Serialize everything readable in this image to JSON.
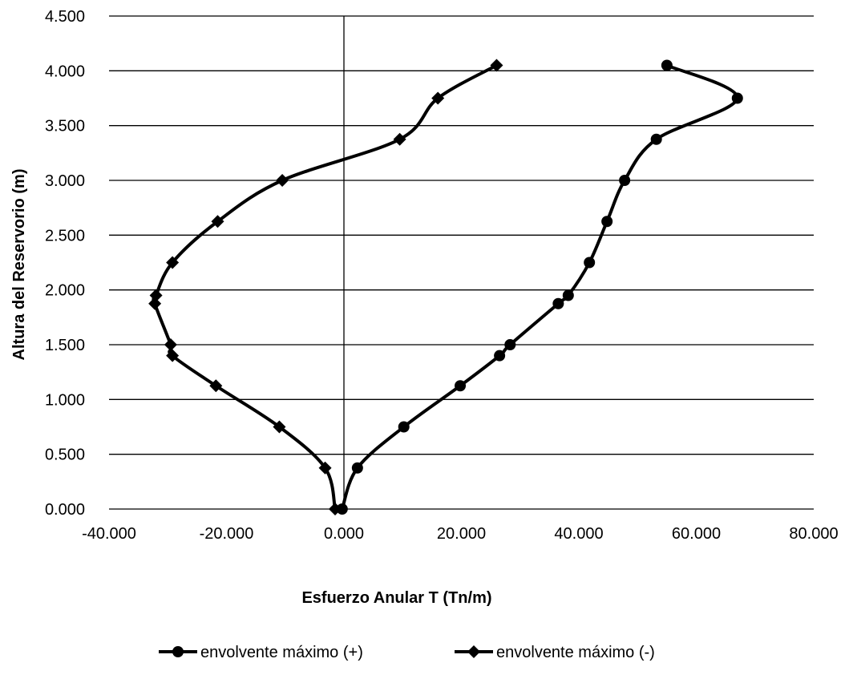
{
  "chart_data": {
    "type": "scatter",
    "title": "",
    "xlabel": "Esfuerzo Anular T (Tn/m)",
    "ylabel": "Altura del Reservorio (m)",
    "xlim": [
      -40,
      80
    ],
    "ylim": [
      0,
      4.5
    ],
    "x_ticks": [
      -40,
      -20,
      0,
      20,
      40,
      60,
      80
    ],
    "x_tick_labels": [
      "-40.000",
      "-20.000",
      "0.000",
      "20.000",
      "40.000",
      "60.000",
      "80.000"
    ],
    "y_ticks": [
      0,
      0.5,
      1,
      1.5,
      2,
      2.5,
      3,
      3.5,
      4,
      4.5
    ],
    "y_tick_labels": [
      "0.000",
      "0.500",
      "1.000",
      "1.500",
      "2.000",
      "2.500",
      "3.000",
      "3.500",
      "4.000",
      "4.500"
    ],
    "grid": "horizontal",
    "legend_position": "bottom",
    "series": [
      {
        "name": "envolvente máximo (+)",
        "marker": "circle",
        "color": "#000000",
        "x": [
          -0.3,
          2.3,
          10.2,
          19.8,
          26.5,
          28.3,
          36.5,
          38.2,
          41.8,
          44.8,
          47.8,
          53.2,
          67.0,
          55.0
        ],
        "y": [
          0.0,
          0.375,
          0.75,
          1.125,
          1.4,
          1.5,
          1.875,
          1.95,
          2.25,
          2.625,
          3.0,
          3.375,
          3.75,
          4.05
        ]
      },
      {
        "name": "envolvente máximo (-)",
        "marker": "diamond",
        "color": "#000000",
        "x": [
          -1.5,
          -3.2,
          -11.0,
          -21.8,
          -29.2,
          -29.5,
          -32.2,
          -32.0,
          -29.2,
          -21.5,
          -10.5,
          9.5,
          16.0,
          26.0
        ],
        "y": [
          0.0,
          0.375,
          0.75,
          1.125,
          1.4,
          1.5,
          1.875,
          1.95,
          2.25,
          2.625,
          3.0,
          3.375,
          3.75,
          4.05
        ]
      }
    ]
  }
}
